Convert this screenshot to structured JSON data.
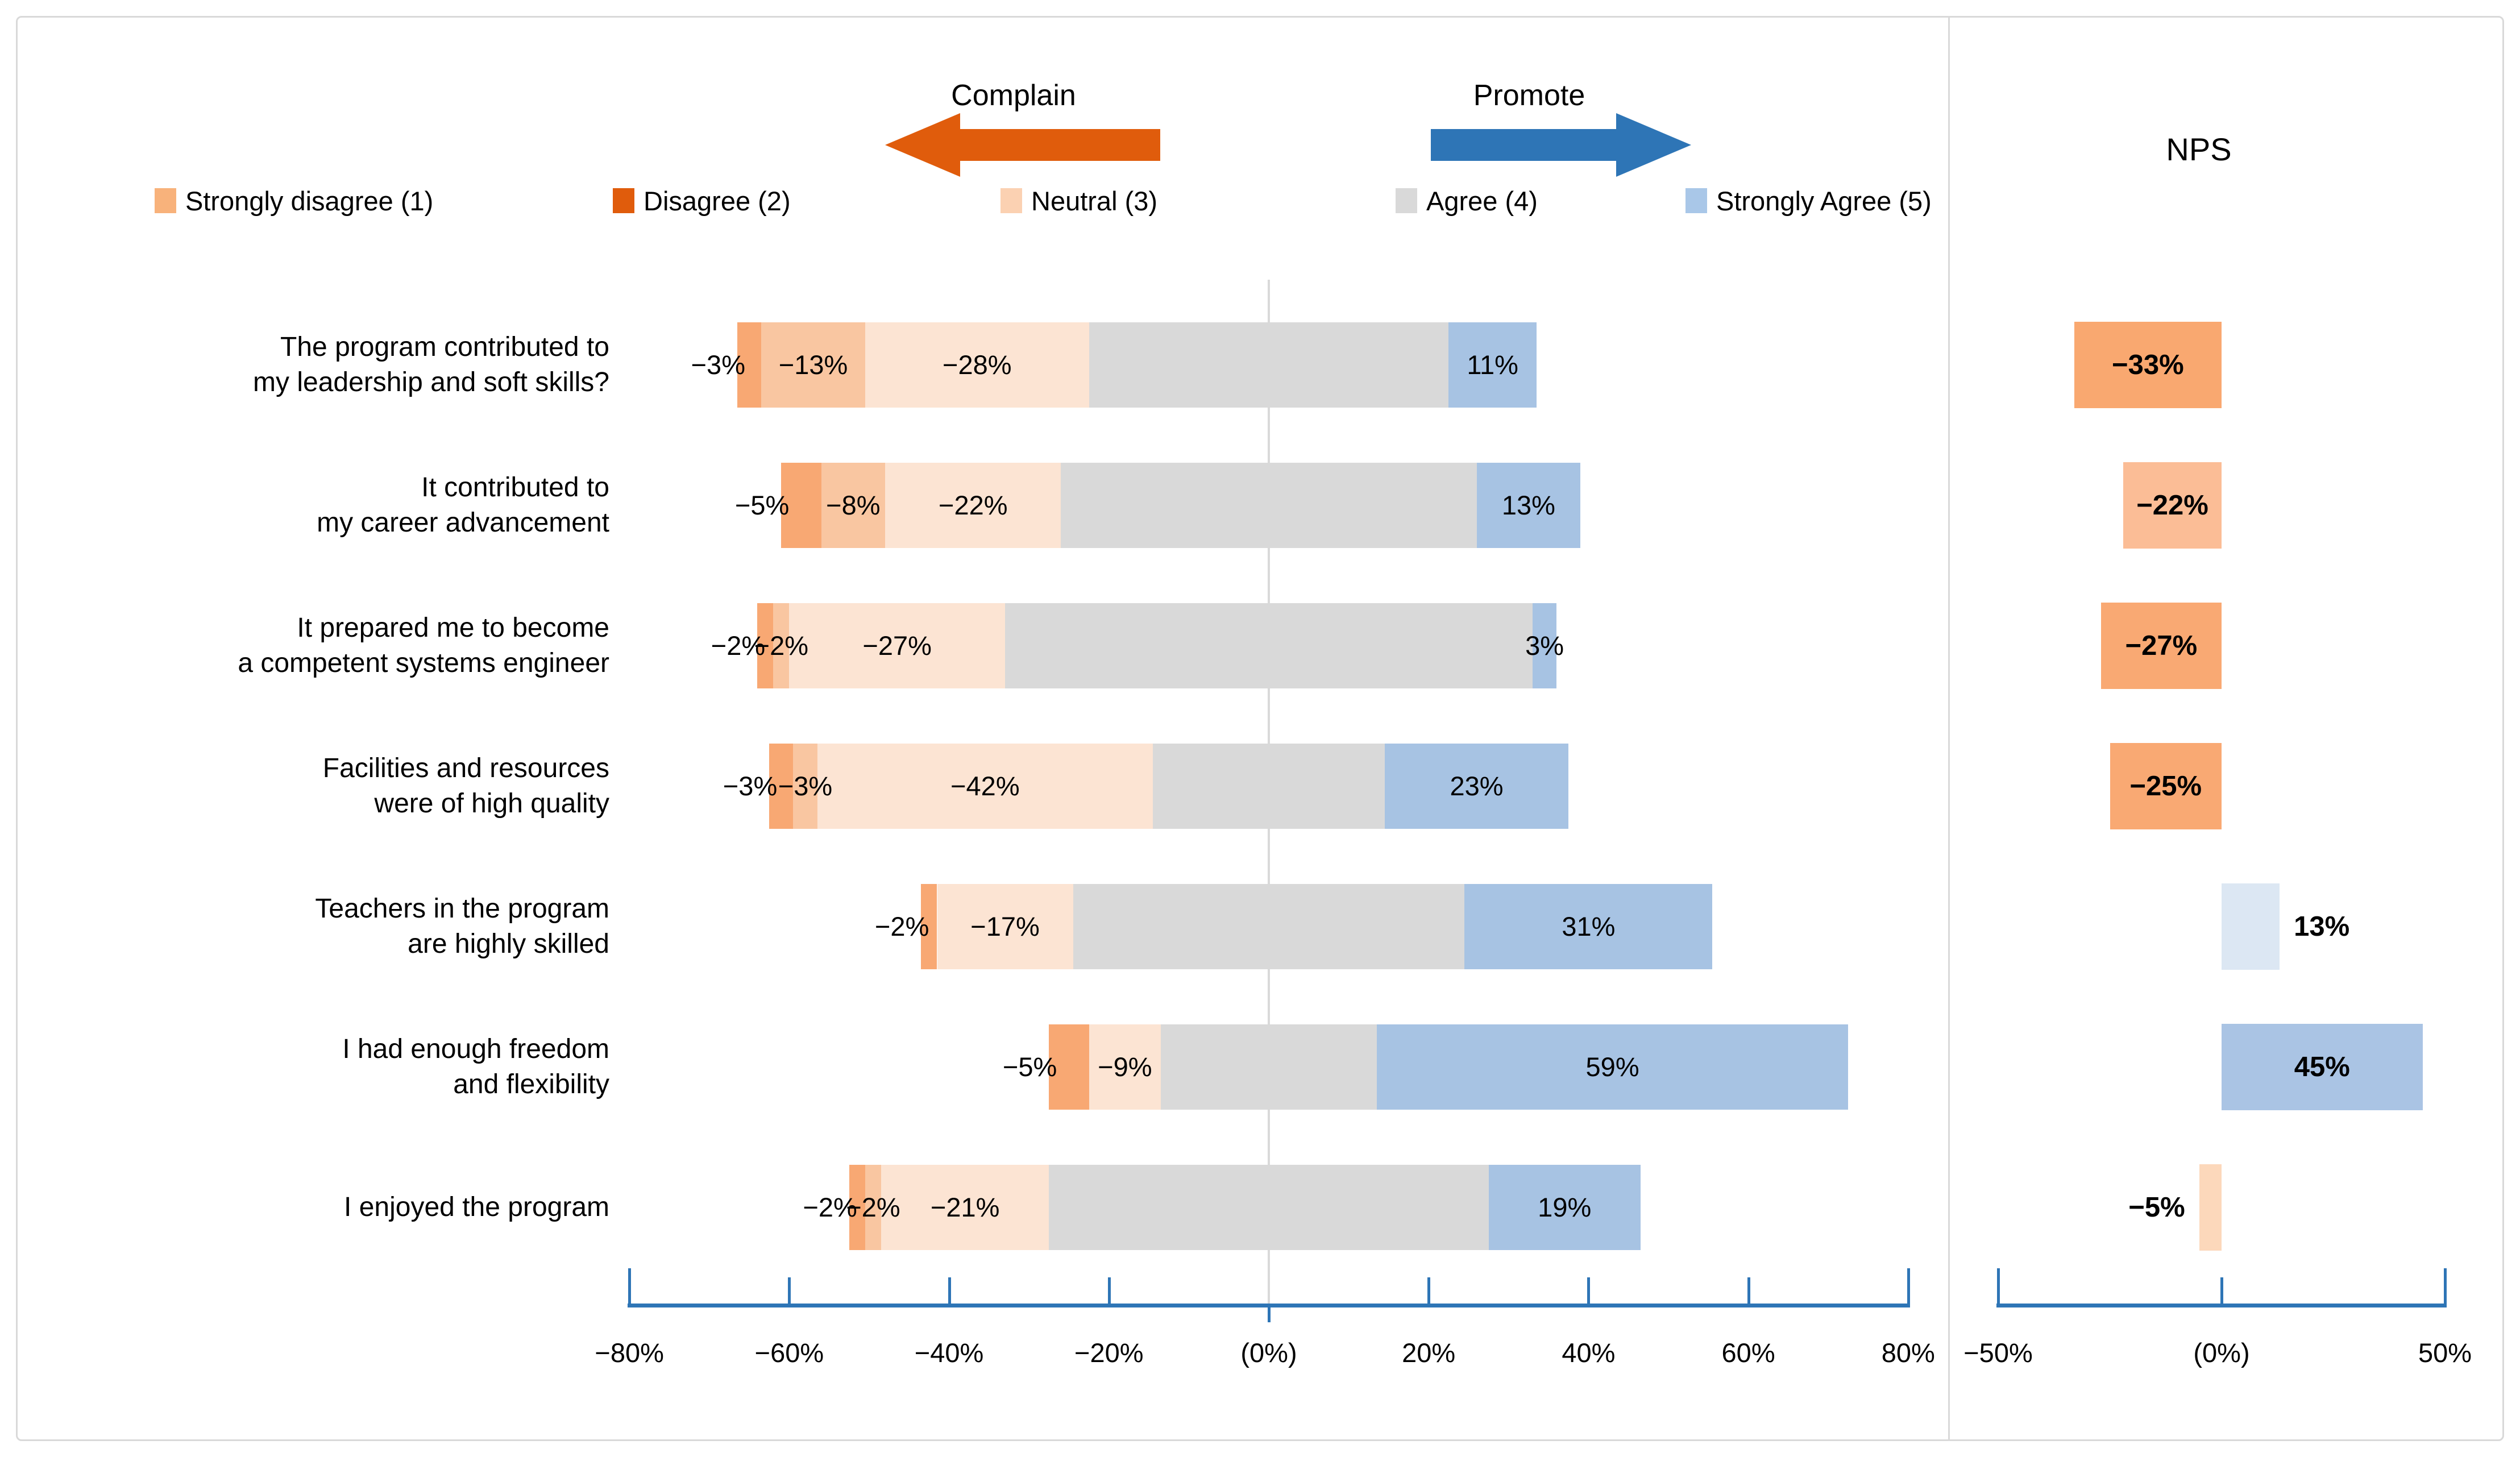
{
  "header": {
    "complain_label": "Complain",
    "promote_label": "Promote",
    "nps_title": "NPS"
  },
  "legend": [
    {
      "label": "Strongly disagree (1)",
      "color": "#f8b27b"
    },
    {
      "label": "Disagree (2)",
      "color": "#e05c0c"
    },
    {
      "label": "Neutral (3)",
      "color": "#fbd1b2"
    },
    {
      "label": "Agree (4)",
      "color": "#d9d9d9"
    },
    {
      "label": "Strongly Agree (5)",
      "color": "#a9c7e8"
    }
  ],
  "chart_data": {
    "type": "bar",
    "subtype": "diverging_stacked_likert_with_nps_panel",
    "title": "",
    "series": [
      "Strongly disagree (1)",
      "Disagree (2)",
      "Neutral (3)",
      "Agree (4)",
      "Strongly Agree (5)"
    ],
    "series_colors": {
      "sd": "#f8a873",
      "d": "#f9c6a1",
      "n": "#fce4d3",
      "a": "#d9d9d9",
      "sa": "#a7c3e3"
    },
    "layout_hint": "Agree (4) segment is centered on 0%; detractor segments stack to the left, Strongly Agree to the right. NPS = promoters − detractors.",
    "axis_main": {
      "range": [
        -80,
        80
      ],
      "color": "#2e75b6",
      "ticks": [
        {
          "v": -80,
          "label": "−80%"
        },
        {
          "v": -60,
          "label": "−60%"
        },
        {
          "v": -40,
          "label": "−40%"
        },
        {
          "v": -20,
          "label": "−20%"
        },
        {
          "v": 0,
          "label": "(0%)"
        },
        {
          "v": 20,
          "label": "20%"
        },
        {
          "v": 40,
          "label": "40%"
        },
        {
          "v": 60,
          "label": "60%"
        },
        {
          "v": 80,
          "label": "80%"
        }
      ]
    },
    "axis_nps": {
      "range": [
        -50,
        50
      ],
      "color": "#2e75b6",
      "ticks": [
        {
          "v": -50,
          "label": "−50%"
        },
        {
          "v": 0,
          "label": "(0%)"
        },
        {
          "v": 50,
          "label": "50%"
        }
      ]
    },
    "rows": [
      {
        "label_lines": [
          "The program contributed to",
          "my leadership and soft skills?"
        ],
        "values": {
          "sd": 3,
          "d": 13,
          "n": 28,
          "a": 45,
          "sa": 11
        },
        "seg_labels": {
          "sd": "−3%",
          "d": "−13%",
          "n": "−28%",
          "sa": "11%"
        },
        "nps": {
          "value": -33,
          "label": "−33%",
          "color": "#f9a870",
          "label_pos": "in"
        }
      },
      {
        "label_lines": [
          "It contributed to",
          "my career advancement"
        ],
        "values": {
          "sd": 5,
          "d": 8,
          "n": 22,
          "a": 52,
          "sa": 13
        },
        "seg_labels": {
          "sd": "−5%",
          "d": "−8%",
          "n": "−22%",
          "sa": "13%"
        },
        "nps": {
          "value": -22,
          "label": "−22%",
          "color": "#fbbd96",
          "label_pos": "in"
        }
      },
      {
        "label_lines": [
          "It prepared me to become",
          "a competent systems engineer"
        ],
        "values": {
          "sd": 2,
          "d": 2,
          "n": 27,
          "a": 66,
          "sa": 3
        },
        "seg_labels": {
          "sd": "−2%",
          "d": "−2%",
          "n": "−27%",
          "sa": "3%"
        },
        "nps": {
          "value": -27,
          "label": "−27%",
          "color": "#f9a973",
          "label_pos": "in"
        }
      },
      {
        "label_lines": [
          "Facilities and resources",
          "were of high quality"
        ],
        "values": {
          "sd": 3,
          "d": 3,
          "n": 42,
          "a": 29,
          "sa": 23
        },
        "seg_labels": {
          "sd": "−3%",
          "d": "−3%",
          "n": "−42%",
          "sa": "23%"
        },
        "nps": {
          "value": -25,
          "label": "−25%",
          "color": "#f9a973",
          "label_pos": "in"
        }
      },
      {
        "label_lines": [
          "Teachers in the program",
          "are highly skilled"
        ],
        "values": {
          "sd": 2,
          "d": 0,
          "n": 17,
          "a": 49,
          "sa": 31
        },
        "seg_labels": {
          "sd": "−2%",
          "d": null,
          "n": "−17%",
          "sa": "31%"
        },
        "nps": {
          "value": 13,
          "label": "13%",
          "color": "#dce7f3",
          "label_pos": "right"
        }
      },
      {
        "label_lines": [
          "I had enough freedom",
          "and flexibility"
        ],
        "values": {
          "sd": 5,
          "d": 0,
          "n": 9,
          "a": 27,
          "sa": 59
        },
        "seg_labels": {
          "sd": "−5%",
          "d": null,
          "n": "−9%",
          "sa": "59%"
        },
        "nps": {
          "value": 45,
          "label": "45%",
          "color": "#aac4e4",
          "label_pos": "in"
        }
      },
      {
        "label_lines": [
          "I enjoyed the program"
        ],
        "values": {
          "sd": 2,
          "d": 2,
          "n": 21,
          "a": 55,
          "sa": 19
        },
        "seg_labels": {
          "sd": "−2%",
          "d": "−2%",
          "n": "−21%",
          "sa": "19%"
        },
        "nps": {
          "value": -5,
          "label": "−5%",
          "color": "#fcd8bb",
          "label_pos": "left"
        }
      }
    ]
  }
}
